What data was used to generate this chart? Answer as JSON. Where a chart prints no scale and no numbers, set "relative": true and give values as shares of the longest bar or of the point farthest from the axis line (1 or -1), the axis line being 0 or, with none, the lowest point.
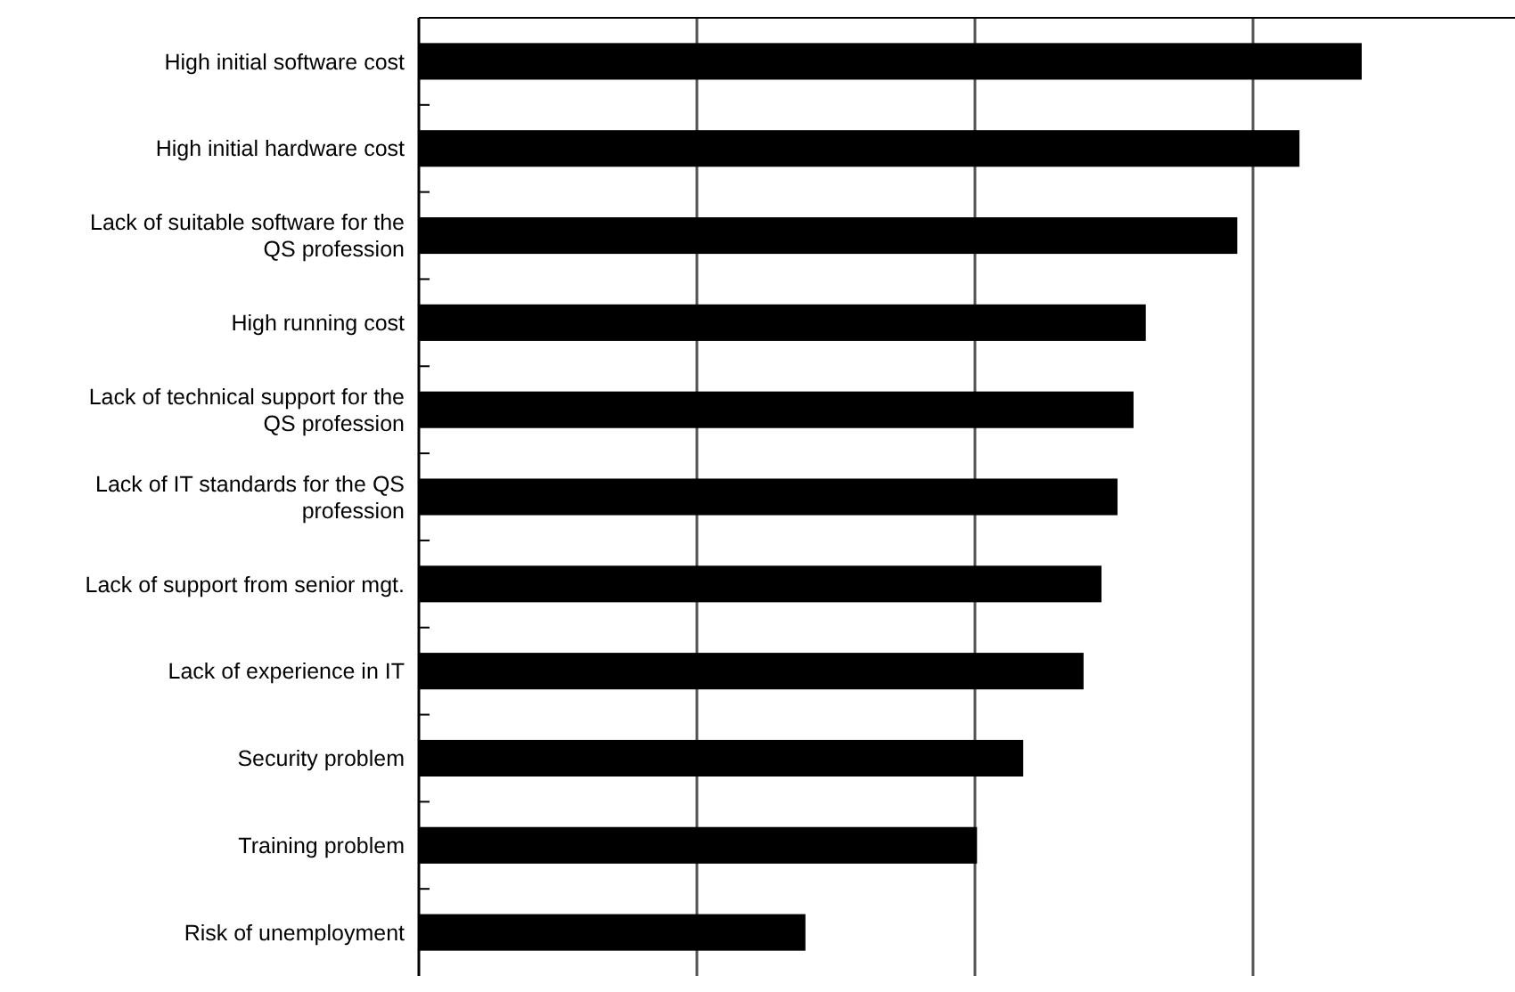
{
  "chart_data": {
    "type": "bar",
    "orientation": "horizontal",
    "relative": true,
    "grid": "x",
    "categories": [
      "High initial software cost",
      "High initial hardware cost",
      "Lack of suitable software for the QS profession",
      "High running cost",
      "Lack of technical support for the QS profession",
      "Lack of IT standards for the QS profession",
      "Lack of support from senior mgt.",
      "Lack of experience in IT",
      "Security problem",
      "Training problem",
      "Risk of unemployment"
    ],
    "values": [
      1,
      0.934,
      0.868,
      0.771,
      0.758,
      0.741,
      0.724,
      0.705,
      0.641,
      0.592,
      0.41
    ],
    "color": "#000000"
  }
}
